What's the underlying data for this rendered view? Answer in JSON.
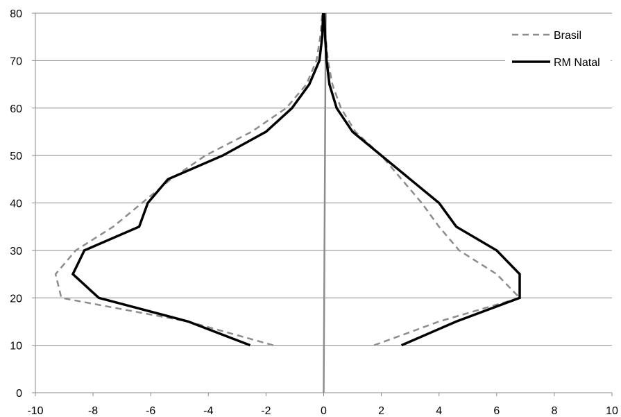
{
  "chart_data": {
    "type": "line",
    "title": "",
    "xlabel": "",
    "ylabel": "",
    "xlim": [
      -10,
      10
    ],
    "ylim": [
      0,
      80
    ],
    "x_ticks": [
      -10,
      -8,
      -6,
      -4,
      -2,
      0,
      2,
      4,
      6,
      8,
      10
    ],
    "y_ticks": [
      0,
      10,
      20,
      30,
      40,
      50,
      60,
      70,
      80
    ],
    "grid": "horizontal",
    "legend_position": "top-right",
    "center_line": {
      "from": [
        0,
        0
      ],
      "to": [
        0,
        80
      ],
      "color": "#8c8c8c"
    },
    "series": [
      {
        "name": "Brasil",
        "color": "#8c8c8c",
        "style": "dashed",
        "left_branch": [
          [
            -1.75,
            10
          ],
          [
            -4.7,
            15
          ],
          [
            -9.1,
            20
          ],
          [
            -9.3,
            25
          ],
          [
            -8.6,
            30
          ],
          [
            -7.3,
            35
          ],
          [
            -6.3,
            40
          ],
          [
            -5.3,
            45
          ],
          [
            -4.1,
            50
          ],
          [
            -2.5,
            55
          ],
          [
            -1.3,
            60
          ],
          [
            -0.6,
            65
          ],
          [
            -0.25,
            70
          ],
          [
            -0.12,
            75
          ],
          [
            -0.05,
            80
          ]
        ],
        "right_branch": [
          [
            1.75,
            10
          ],
          [
            4.0,
            15
          ],
          [
            6.8,
            20
          ],
          [
            6.0,
            25
          ],
          [
            4.7,
            30
          ],
          [
            4.0,
            35
          ],
          [
            3.4,
            40
          ],
          [
            2.7,
            45
          ],
          [
            2.0,
            50
          ],
          [
            1.1,
            55
          ],
          [
            0.6,
            60
          ],
          [
            0.3,
            65
          ],
          [
            0.15,
            70
          ],
          [
            0.07,
            75
          ],
          [
            0.03,
            80
          ]
        ]
      },
      {
        "name": "RM Natal",
        "color": "#000000",
        "style": "solid",
        "left_branch": [
          [
            -2.55,
            10
          ],
          [
            -4.7,
            15
          ],
          [
            -7.8,
            20
          ],
          [
            -8.7,
            25
          ],
          [
            -8.3,
            30
          ],
          [
            -6.4,
            35
          ],
          [
            -6.1,
            40
          ],
          [
            -5.4,
            45
          ],
          [
            -3.5,
            50
          ],
          [
            -2.0,
            55
          ],
          [
            -1.1,
            60
          ],
          [
            -0.5,
            65
          ],
          [
            -0.15,
            70
          ],
          [
            -0.05,
            75
          ],
          [
            -0.02,
            80
          ]
        ],
        "right_branch": [
          [
            2.7,
            10
          ],
          [
            4.6,
            15
          ],
          [
            6.8,
            20
          ],
          [
            6.8,
            25
          ],
          [
            6.0,
            30
          ],
          [
            4.6,
            35
          ],
          [
            4.0,
            40
          ],
          [
            3.0,
            45
          ],
          [
            2.0,
            50
          ],
          [
            1.0,
            55
          ],
          [
            0.45,
            60
          ],
          [
            0.2,
            65
          ],
          [
            0.1,
            70
          ],
          [
            0.05,
            75
          ],
          [
            0.02,
            80
          ]
        ]
      }
    ]
  }
}
